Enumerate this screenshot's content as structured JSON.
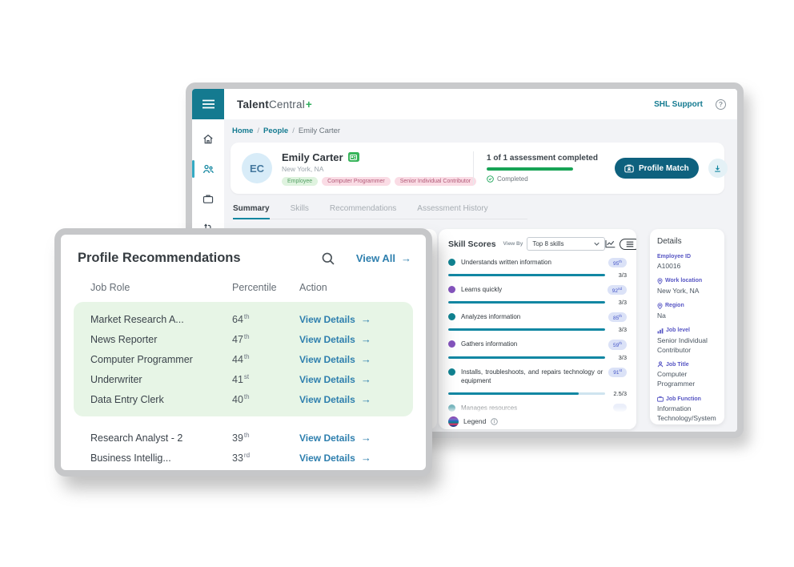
{
  "app": {
    "logo": {
      "part1": "Talent",
      "part2": "Central",
      "plus": "+"
    },
    "support_label": "SHL Support"
  },
  "breadcrumb": {
    "separator": "/",
    "items": [
      "Home",
      "People",
      "Emily Carter"
    ]
  },
  "sidebar": {
    "items": [
      {
        "name": "home"
      },
      {
        "name": "people",
        "active": true
      },
      {
        "name": "jobs"
      },
      {
        "name": "workflows"
      }
    ]
  },
  "profile": {
    "initials": "EC",
    "name": "Emily Carter",
    "location": "New York, NA",
    "tags": [
      {
        "label": "Employee",
        "type": "green"
      },
      {
        "label": "Computer Programmer",
        "type": "pink"
      },
      {
        "label": "Senior Individual Contributor",
        "type": "pink"
      }
    ],
    "assessment": {
      "summary": "1 of 1 assessment completed",
      "status": "Completed",
      "progress_percent": 100
    },
    "profile_match_label": "Profile Match"
  },
  "tabs": [
    {
      "label": "Summary",
      "active": true
    },
    {
      "label": "Skills"
    },
    {
      "label": "Recommendations"
    },
    {
      "label": "Assessment History"
    }
  ],
  "recommendations": {
    "title": "Profile Recommendations",
    "view_all_label": "View All",
    "columns": [
      "Job Role",
      "Percentile",
      "Action"
    ],
    "action_label": "View Details",
    "highlighted_rows": [
      {
        "role": "Market Research A...",
        "percentile": "64",
        "suffix": "th"
      },
      {
        "role": "News Reporter",
        "percentile": "47",
        "suffix": "th"
      },
      {
        "role": "Computer Programmer",
        "percentile": "44",
        "suffix": "th"
      },
      {
        "role": "Underwriter",
        "percentile": "41",
        "suffix": "st"
      },
      {
        "role": "Data Entry Clerk",
        "percentile": "40",
        "suffix": "th"
      }
    ],
    "other_rows": [
      {
        "role": "Research Analyst - 2",
        "percentile": "39",
        "suffix": "th"
      },
      {
        "role": "Business Intellig...",
        "percentile": "33",
        "suffix": "rd"
      }
    ]
  },
  "skill_scores": {
    "title": "Skill Scores",
    "view_by_label": "View By",
    "view_by_value": "Top 8 skills",
    "legend_label": "Legend",
    "items": [
      {
        "label": "Understands written information",
        "dot_color": "#0e8190",
        "percentile": "95",
        "suffix": "th",
        "score": "3/3",
        "fill_percent": 100
      },
      {
        "label": "Learns quickly",
        "dot_color": "#8352bd",
        "percentile": "92",
        "suffix": "nd",
        "score": "3/3",
        "fill_percent": 100
      },
      {
        "label": "Analyzes information",
        "dot_color": "#0e8190",
        "percentile": "85",
        "suffix": "th",
        "score": "3/3",
        "fill_percent": 100
      },
      {
        "label": "Gathers information",
        "dot_color": "#8352bd",
        "percentile": "59",
        "suffix": "th",
        "score": "3/3",
        "fill_percent": 100
      },
      {
        "label": "Installs, troubleshoots, and repairs technology or equipment",
        "dot_color": "#0e8190",
        "percentile": "91",
        "suffix": "st",
        "score": "2.5/3",
        "fill_percent": 83
      }
    ],
    "partial_item": {
      "label": "Manages resources"
    }
  },
  "details": {
    "title": "Details",
    "fields": [
      {
        "icon": "none",
        "label": "Employee ID",
        "value": "A10016"
      },
      {
        "icon": "pin",
        "label": "Work location",
        "value": "New York, NA"
      },
      {
        "icon": "pin",
        "label": "Region",
        "value": "Na"
      },
      {
        "icon": "bar-chart",
        "label": "Job level",
        "value": "Senior Individual Contributor"
      },
      {
        "icon": "person",
        "label": "Job Title",
        "value": "Computer Programmer"
      },
      {
        "icon": "briefcase",
        "label": "Job Function",
        "value": "Information Technology/Systems (Includi..."
      }
    ]
  },
  "colors": {
    "accent_teal": "#137a90",
    "button_teal": "#0e617e",
    "link_blue": "#2e7fae",
    "success_green": "#17a355",
    "badge_bg": "#dbe2f7",
    "badge_text": "#4556c8",
    "dot_teal": "#0e8190",
    "dot_purple": "#8352bd",
    "highlight_green_bg": "#e7f5e6",
    "details_label": "#5756c4"
  }
}
